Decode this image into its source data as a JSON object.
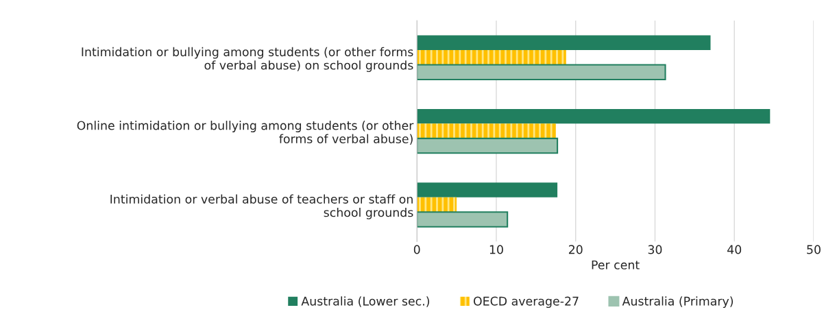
{
  "chart_data": {
    "type": "bar",
    "orientation": "horizontal",
    "categories": [
      "Intimidation or bullying among students (or other forms\nof verbal abuse) on school grounds",
      "Online intimidation or bullying among students (or other\nforms of verbal abuse)",
      "Intimidation or verbal abuse of teachers or staff on\nschool grounds"
    ],
    "series": [
      {
        "name": "Australia (Lower sec.)",
        "color": "#217f5f",
        "values": [
          37.0,
          44.5,
          17.7
        ]
      },
      {
        "name": "OECD average-27",
        "color": "#ffc000",
        "values": [
          18.8,
          17.5,
          5.0
        ]
      },
      {
        "name": "Australia (Primary)",
        "color": "#9dc3b0",
        "values": [
          31.3,
          17.7,
          11.4
        ]
      }
    ],
    "xlabel": "Per cent",
    "xlim": [
      0,
      50
    ],
    "xticks": [
      0,
      10,
      20,
      30,
      40,
      50
    ],
    "grid": "x",
    "legend": "bottom"
  }
}
